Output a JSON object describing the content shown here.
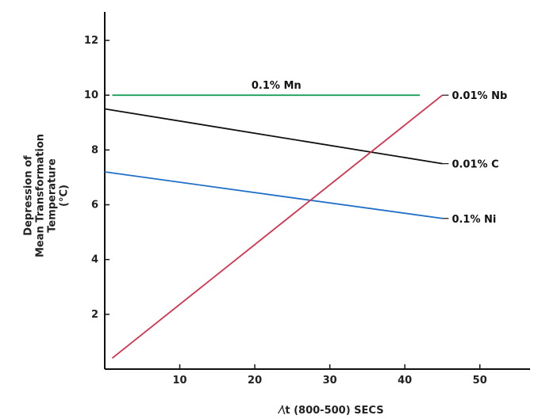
{
  "chart_data": {
    "type": "line",
    "xlabel": "⁄\\t (800-500) SECS",
    "ylabel_lines": [
      "Depression of",
      "Mean Transformation",
      "Temperature",
      "(°C)"
    ],
    "xlim": [
      0,
      55
    ],
    "ylim": [
      0,
      13
    ],
    "xticks": [
      10,
      20,
      30,
      40,
      50
    ],
    "yticks": [
      2,
      4,
      6,
      8,
      10,
      12
    ],
    "grid": false,
    "series": [
      {
        "name": "0.1% Mn",
        "color": "#1a9e5a",
        "x": [
          1,
          42
        ],
        "y": [
          10,
          10
        ],
        "label_placement": "above-middle"
      },
      {
        "name": "0.01% C",
        "color": "#111111",
        "x": [
          0,
          45
        ],
        "y": [
          9.5,
          7.5
        ],
        "label_placement": "end"
      },
      {
        "name": "0.1% Ni",
        "color": "#1f6fc9",
        "x": [
          0,
          45
        ],
        "y": [
          7.2,
          5.5
        ],
        "label_placement": "end"
      },
      {
        "name": "0.01% Nb",
        "color": "#d4334e",
        "x": [
          1,
          45
        ],
        "y": [
          0.4,
          10
        ],
        "label_placement": "end"
      }
    ]
  }
}
